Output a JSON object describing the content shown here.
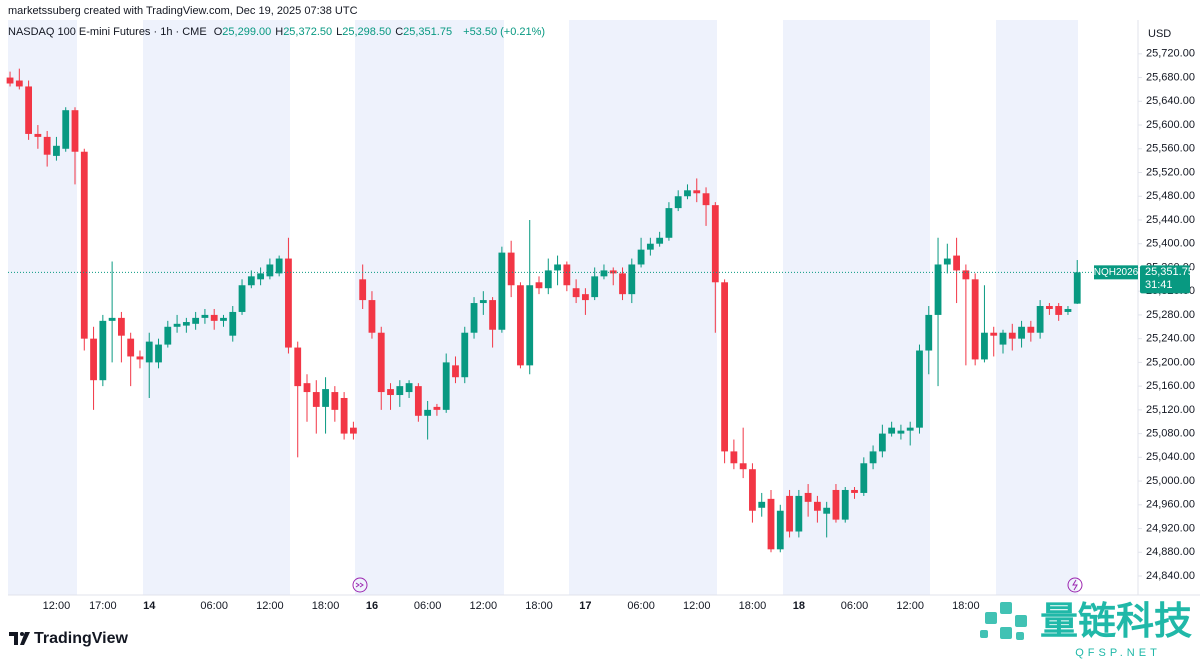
{
  "chart_data": {
    "type": "candlestick",
    "attribution": "marketssuberg created with TradingView.com, Dec 19, 2025 07:38 UTC",
    "symbol": "NASDAQ 100 E-mini Futures · 1h · CME",
    "ohlc_header": [
      {
        "label": "O",
        "value": "25,299.00"
      },
      {
        "label": "H",
        "value": "25,372.50"
      },
      {
        "label": "L",
        "value": "25,298.50"
      },
      {
        "label": "C",
        "value": "25,351.75"
      }
    ],
    "change": "+53.50 (+0.21%)",
    "currency": "USD",
    "ticker": "NQH2026",
    "last_price": {
      "value": 25351.75,
      "label": "25,351.75"
    },
    "countdown": "31:41",
    "logo": "TradingView",
    "watermark": "量链科技",
    "watermark_site": "QFSP.NET",
    "up_color": "#089981",
    "down_color": "#f23645",
    "grid": false,
    "categories": [
      null,
      null,
      null,
      null,
      null,
      "12:00",
      null,
      null,
      null,
      null,
      "17:00",
      null,
      null,
      null,
      null,
      "14",
      null,
      null,
      null,
      null,
      null,
      null,
      "06:00",
      null,
      null,
      null,
      null,
      null,
      "12:00",
      null,
      null,
      null,
      null,
      null,
      "18:00",
      null,
      null,
      null,
      null,
      "16",
      null,
      null,
      null,
      null,
      null,
      "06:00",
      null,
      null,
      null,
      null,
      null,
      "12:00",
      null,
      null,
      null,
      null,
      null,
      "18:00",
      null,
      null,
      null,
      null,
      "17",
      null,
      null,
      null,
      null,
      null,
      "06:00",
      null,
      null,
      null,
      null,
      null,
      "12:00",
      null,
      null,
      null,
      null,
      null,
      "18:00",
      null,
      null,
      null,
      null,
      "18",
      null,
      null,
      null,
      null,
      null,
      "06:00",
      null,
      null,
      null,
      null,
      null,
      "12:00",
      null,
      null,
      null,
      null,
      null,
      "18:00",
      null,
      null,
      null,
      null,
      null,
      null,
      null,
      null,
      null,
      null,
      null,
      null
    ],
    "open": [
      25680,
      25675,
      25665,
      25585,
      25580,
      25548,
      25560,
      25625,
      25555,
      25240,
      25170,
      25270,
      25275,
      25240,
      25210,
      25200,
      25200,
      25230,
      25260,
      25262,
      25265,
      25275,
      25280,
      25270,
      25245,
      25285,
      25330,
      25340,
      25345,
      25350,
      25375,
      25225,
      25165,
      25150,
      25125,
      25150,
      25140,
      25090,
      25340,
      25305,
      25250,
      25155,
      25145,
      25150,
      25160,
      25110,
      25125,
      25120,
      25195,
      25175,
      25250,
      25300,
      25305,
      25255,
      25385,
      25330,
      25195,
      25335,
      25325,
      25355,
      25365,
      25325,
      25315,
      25310,
      25345,
      25355,
      25350,
      25315,
      25365,
      25390,
      25400,
      25410,
      25460,
      25480,
      25490,
      25485,
      25465,
      25335,
      25050,
      25030,
      25020,
      24955,
      24970,
      24885,
      24975,
      24915,
      24980,
      24965,
      24945,
      24985,
      24935,
      24985,
      24980,
      25030,
      25050,
      25080,
      25080,
      25085,
      25090,
      25220,
      25280,
      25365,
      25380,
      25355,
      25340,
      25205,
      25250,
      25230,
      25250,
      25240,
      25260,
      25250,
      25295,
      25295,
      25285,
      25299
    ],
    "high": [
      25690,
      25695,
      25675,
      25600,
      25590,
      25580,
      25630,
      25630,
      25560,
      25260,
      25280,
      25370,
      25285,
      25250,
      25220,
      25250,
      25240,
      25270,
      25280,
      25275,
      25285,
      25290,
      25290,
      25280,
      25295,
      25340,
      25355,
      25360,
      25375,
      25380,
      25410,
      25235,
      25180,
      25170,
      25175,
      25160,
      25150,
      25100,
      25365,
      25320,
      25260,
      25165,
      25170,
      25170,
      25165,
      25135,
      25130,
      25215,
      25210,
      25260,
      25310,
      25320,
      25310,
      25395,
      25405,
      25335,
      25440,
      25345,
      25375,
      25380,
      25370,
      25340,
      25325,
      25360,
      25365,
      25360,
      25360,
      25375,
      25410,
      25410,
      25420,
      25470,
      25490,
      25500,
      25510,
      25495,
      25470,
      25340,
      25070,
      25090,
      25030,
      24980,
      24985,
      24960,
      24985,
      24985,
      24995,
      24975,
      24965,
      24995,
      24990,
      24990,
      25040,
      25060,
      25095,
      25100,
      25095,
      25100,
      25230,
      25295,
      25410,
      25400,
      25410,
      25365,
      25350,
      25330,
      25260,
      25255,
      25265,
      25270,
      25270,
      25305,
      25300,
      25300,
      25295,
      25372.5
    ],
    "low": [
      25665,
      25660,
      25575,
      25560,
      25530,
      25540,
      25555,
      25500,
      25220,
      25120,
      25160,
      25200,
      25200,
      25160,
      25190,
      25140,
      25190,
      25225,
      25250,
      25250,
      25255,
      25265,
      25255,
      25260,
      25235,
      25280,
      25325,
      25330,
      25340,
      25345,
      25215,
      25040,
      25100,
      25080,
      25080,
      25100,
      25070,
      25070,
      25290,
      25240,
      25120,
      25120,
      25125,
      25140,
      25100,
      25070,
      25110,
      25115,
      25165,
      25165,
      25240,
      25280,
      25225,
      25250,
      25310,
      25190,
      25180,
      25315,
      25315,
      25330,
      25320,
      25300,
      25280,
      25305,
      25340,
      25330,
      25305,
      25300,
      25360,
      25380,
      25395,
      25405,
      25455,
      25475,
      25470,
      25430,
      25250,
      25030,
      25020,
      25005,
      24930,
      24940,
      24880,
      24880,
      24905,
      24905,
      24940,
      24930,
      24905,
      24930,
      24930,
      24970,
      24975,
      25020,
      25040,
      25075,
      25070,
      25060,
      25080,
      25180,
      25160,
      25350,
      25300,
      25195,
      25195,
      25200,
      25210,
      25215,
      25220,
      25225,
      25235,
      25240,
      25280,
      25270,
      25280,
      25298.5
    ],
    "close": [
      25670,
      25665,
      25585,
      25580,
      25550,
      25565,
      25625,
      25555,
      25240,
      25170,
      25270,
      25275,
      25245,
      25210,
      25205,
      25235,
      25230,
      25260,
      25265,
      25268,
      25275,
      25280,
      25270,
      25275,
      25285,
      25330,
      25345,
      25350,
      25365,
      25375,
      25225,
      25160,
      25150,
      25125,
      25155,
      25120,
      25080,
      25080,
      25305,
      25250,
      25150,
      25145,
      25160,
      25165,
      25110,
      25120,
      25120,
      25200,
      25175,
      25250,
      25300,
      25305,
      25255,
      25385,
      25330,
      25195,
      25330,
      25325,
      25355,
      25365,
      25330,
      25310,
      25305,
      25345,
      25355,
      25350,
      25315,
      25365,
      25390,
      25400,
      25410,
      25460,
      25480,
      25490,
      25485,
      25465,
      25335,
      25050,
      25030,
      25020,
      24950,
      24965,
      24885,
      24950,
      24915,
      24975,
      24965,
      24950,
      24955,
      24935,
      24985,
      24980,
      25030,
      25050,
      25080,
      25090,
      25085,
      25090,
      25220,
      25280,
      25365,
      25375,
      25355,
      25340,
      25205,
      25250,
      25245,
      25250,
      25240,
      25260,
      25250,
      25295,
      25290,
      25280,
      25290,
      25351.75
    ],
    "ylim": [
      24808,
      25777
    ],
    "yticks": [
      {
        "value": 24840,
        "label": "24,840.00"
      },
      {
        "value": 24880,
        "label": "24,880.00"
      },
      {
        "value": 24920,
        "label": "24,920.00"
      },
      {
        "value": 24960,
        "label": "24,960.00"
      },
      {
        "value": 25000,
        "label": "25,000.00"
      },
      {
        "value": 25040,
        "label": "25,040.00"
      },
      {
        "value": 25080,
        "label": "25,080.00"
      },
      {
        "value": 25120,
        "label": "25,120.00"
      },
      {
        "value": 25160,
        "label": "25,160.00"
      },
      {
        "value": 25200,
        "label": "25,200.00"
      },
      {
        "value": 25240,
        "label": "25,240.00"
      },
      {
        "value": 25280,
        "label": "25,280.00"
      },
      {
        "value": 25320,
        "label": "25,320.00"
      },
      {
        "value": 25360,
        "label": "25,360.00"
      },
      {
        "value": 25400,
        "label": "25,400.00"
      },
      {
        "value": 25440,
        "label": "25,440.00"
      },
      {
        "value": 25480,
        "label": "25,480.00"
      },
      {
        "value": 25520,
        "label": "25,520.00"
      },
      {
        "value": 25560,
        "label": "25,560.00"
      },
      {
        "value": 25600,
        "label": "25,600.00"
      },
      {
        "value": 25640,
        "label": "25,640.00"
      },
      {
        "value": 25680,
        "label": "25,680.00"
      },
      {
        "value": 25720,
        "label": "25,720.00"
      }
    ]
  }
}
